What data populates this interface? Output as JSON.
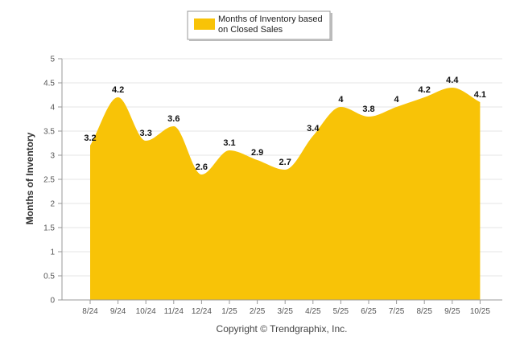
{
  "chart_data": {
    "type": "area",
    "title": "",
    "legend": {
      "label_line1": "Months of Inventory based",
      "label_line2": "on Closed Sales",
      "placement": "top-center"
    },
    "xlabel": "",
    "ylabel": "Months of Inventory",
    "ylim": [
      0,
      5
    ],
    "yticks": [
      "0",
      "0.5",
      "1",
      "1.5",
      "2",
      "2.5",
      "3",
      "3.5",
      "4",
      "4.5",
      "5"
    ],
    "grid": true,
    "categories": [
      "8/24",
      "9/24",
      "10/24",
      "11/24",
      "12/24",
      "1/25",
      "2/25",
      "3/25",
      "4/25",
      "5/25",
      "6/25",
      "7/25",
      "8/25",
      "9/25",
      "10/25"
    ],
    "series": [
      {
        "name": "Months of Inventory based on Closed Sales",
        "values": [
          3.2,
          4.2,
          3.3,
          3.6,
          2.6,
          3.1,
          2.9,
          2.7,
          3.4,
          4,
          3.8,
          4,
          4.2,
          4.4,
          4.1
        ],
        "labels": [
          "3.2",
          "4.2",
          "3.3",
          "3.6",
          "2.6",
          "3.1",
          "2.9",
          "2.7",
          "3.4",
          "4",
          "3.8",
          "4",
          "4.2",
          "4.4",
          "4.1"
        ]
      }
    ],
    "colors": {
      "fill": "#F8C307",
      "grid": "#E6E6E6",
      "axis": "#999999"
    }
  },
  "footer": {
    "copyright": "Copyright © Trendgraphix, Inc."
  }
}
